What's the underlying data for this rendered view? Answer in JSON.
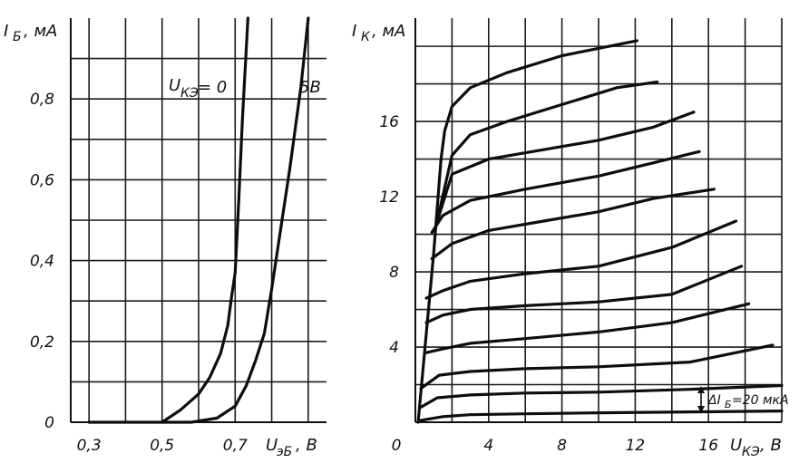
{
  "chart_data": [
    {
      "type": "line",
      "ylabel": "I_Б, мА",
      "xlabel": "U_БЭ, В",
      "xlim": [
        0.25,
        0.95
      ],
      "ylim": [
        0,
        1.0
      ],
      "x_ticks": [
        "0,3",
        "0,5",
        "0,7"
      ],
      "y_ticks": [
        "0",
        "0,2",
        "0,4",
        "0,6",
        "0,8"
      ],
      "grid": true,
      "series": [
        {
          "name": "U_КЭ = 0",
          "x": [
            0.3,
            0.5,
            0.55,
            0.6,
            0.63,
            0.66,
            0.68,
            0.69,
            0.7,
            0.71,
            0.72,
            0.735
          ],
          "y": [
            0.0,
            0.0,
            0.03,
            0.07,
            0.11,
            0.17,
            0.24,
            0.31,
            0.37,
            0.55,
            0.75,
            1.0
          ]
        },
        {
          "name": "5В",
          "x": [
            0.5,
            0.58,
            0.65,
            0.7,
            0.73,
            0.755,
            0.78,
            0.8,
            0.82,
            0.85,
            0.88,
            0.9
          ],
          "y": [
            0.0,
            0.0,
            0.01,
            0.04,
            0.09,
            0.15,
            0.22,
            0.33,
            0.45,
            0.63,
            0.83,
            1.0
          ]
        }
      ],
      "curve_labels": [
        "U",
        "КЭ",
        "= 0",
        "5В"
      ]
    },
    {
      "type": "line",
      "ylabel": "I_К, мА",
      "xlabel": "U_КЭ, В",
      "xlim": [
        0,
        20
      ],
      "ylim": [
        0,
        21.5
      ],
      "x_ticks": [
        "0",
        "4",
        "8",
        "12",
        "16"
      ],
      "y_ticks": [
        "4",
        "8",
        "12",
        "16"
      ],
      "grid": true,
      "annotation": {
        "prefix": "ΔI",
        "sub": "Б",
        "value": "=20 мкА"
      },
      "series": [
        {
          "x": [
            0.3,
            1.5,
            3,
            6,
            10,
            15,
            20
          ],
          "y": [
            0.1,
            0.3,
            0.4,
            0.45,
            0.5,
            0.55,
            0.6
          ]
        },
        {
          "x": [
            0.3,
            1.2,
            3,
            6,
            10,
            15,
            20
          ],
          "y": [
            0.8,
            1.3,
            1.45,
            1.55,
            1.6,
            1.75,
            1.95
          ]
        },
        {
          "x": [
            0.3,
            1.3,
            3,
            6,
            10,
            15,
            19.5
          ],
          "y": [
            1.8,
            2.5,
            2.7,
            2.85,
            2.95,
            3.2,
            4.1
          ]
        },
        {
          "x": [
            0.6,
            1.5,
            3,
            6,
            10,
            14,
            18.2
          ],
          "y": [
            3.7,
            3.9,
            4.2,
            4.45,
            4.8,
            5.3,
            6.3
          ]
        },
        {
          "x": [
            0.6,
            1.5,
            3,
            6,
            10,
            14,
            17.8
          ],
          "y": [
            5.3,
            5.7,
            6.0,
            6.2,
            6.4,
            6.8,
            8.3
          ]
        },
        {
          "x": [
            0.6,
            1.5,
            3,
            6,
            10,
            14,
            17.5
          ],
          "y": [
            6.6,
            7.0,
            7.5,
            7.9,
            8.3,
            9.3,
            10.7
          ]
        },
        {
          "x": [
            0.9,
            2,
            4,
            7,
            10,
            13,
            16.3
          ],
          "y": [
            8.7,
            9.5,
            10.2,
            10.7,
            11.2,
            11.9,
            12.4
          ]
        },
        {
          "x": [
            0.9,
            1.5,
            3,
            6,
            10,
            13,
            15.5
          ],
          "y": [
            10.1,
            11.0,
            11.8,
            12.4,
            13.1,
            13.8,
            14.4
          ]
        },
        {
          "x": [
            1.2,
            2,
            4,
            7,
            10,
            13,
            15.2
          ],
          "y": [
            10.7,
            13.2,
            14.0,
            14.5,
            15.0,
            15.7,
            16.5
          ]
        },
        {
          "x": [
            1.3,
            2,
            3,
            5,
            8,
            11,
            13.2
          ],
          "y": [
            11.2,
            14.2,
            15.3,
            16.0,
            16.9,
            17.8,
            18.1
          ]
        },
        {
          "x": [
            1.4,
            1.6,
            2,
            3,
            5,
            8,
            12.1
          ],
          "y": [
            14.0,
            15.5,
            16.8,
            17.8,
            18.6,
            19.5,
            20.3
          ]
        }
      ]
    }
  ]
}
